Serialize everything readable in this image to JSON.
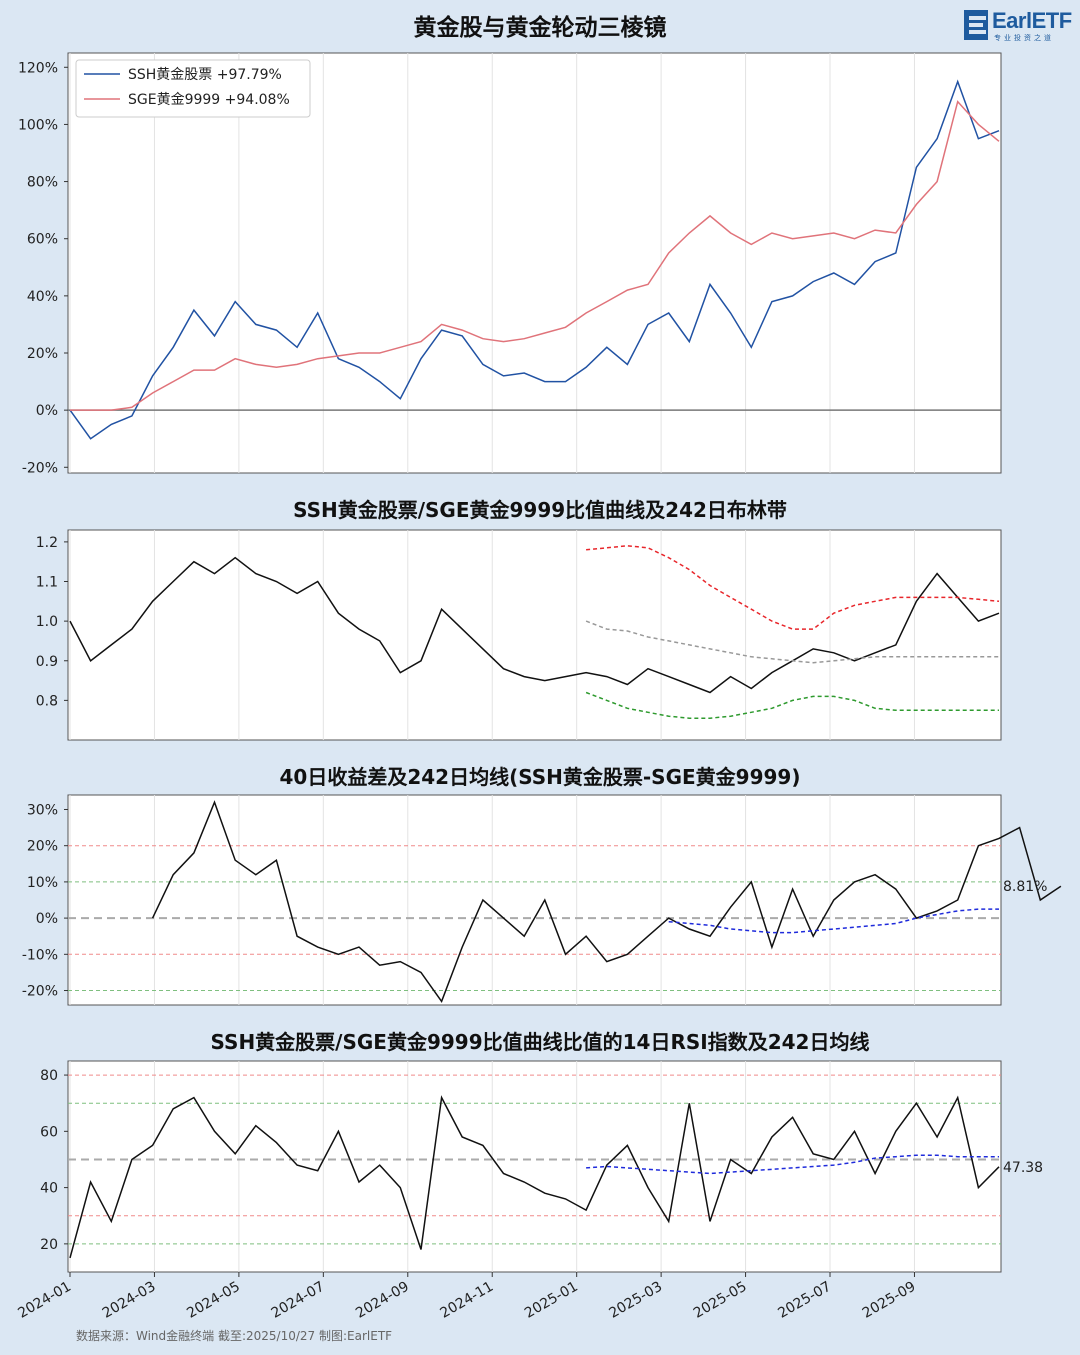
{
  "header": {
    "title": "黄金股与黄金轮动三棱镜",
    "logo_text": "EarlETF",
    "logo_sub": "专业投资之道"
  },
  "footer": {
    "text": "数据来源：Wind金融终端 截至:2025/10/27 制图:EarlETF"
  },
  "colors": {
    "background": "#dbe7f3",
    "ssh": "#2152a3",
    "sge": "#e0737a",
    "ratio": "#111111",
    "upper_band": "#e8262b",
    "mid_band": "#999999",
    "lower_band": "#2e9a2e",
    "ma": "#1f2bdb"
  },
  "chart_data": [
    {
      "type": "line",
      "title": "",
      "xlabel": "",
      "ylabel": "",
      "ylim": [
        -22,
        125
      ],
      "y_ticks": [
        "-20%",
        "0%",
        "20%",
        "40%",
        "60%",
        "80%",
        "100%",
        "120%"
      ],
      "legend_position": "top-left",
      "grid": "vertical",
      "x": [
        "2024-01-02",
        "2024-01-20",
        "2024-02-05",
        "2024-02-25",
        "2024-03-10",
        "2024-03-25",
        "2024-04-10",
        "2024-04-25",
        "2024-05-10",
        "2024-05-20",
        "2024-06-05",
        "2024-06-25",
        "2024-07-10",
        "2024-07-25",
        "2024-08-05",
        "2024-08-20",
        "2024-09-05",
        "2024-09-15",
        "2024-09-25",
        "2024-10-10",
        "2024-10-25",
        "2024-11-10",
        "2024-11-25",
        "2024-12-10",
        "2024-12-25",
        "2025-01-10",
        "2025-01-25",
        "2025-02-10",
        "2025-02-25",
        "2025-03-10",
        "2025-03-25",
        "2025-04-10",
        "2025-04-20",
        "2025-04-30",
        "2025-05-15",
        "2025-06-01",
        "2025-06-20",
        "2025-07-05",
        "2025-07-20",
        "2025-08-05",
        "2025-08-20",
        "2025-09-05",
        "2025-09-20",
        "2025-10-05",
        "2025-10-15",
        "2025-10-27"
      ],
      "series": [
        {
          "name": "SSH黄金股票",
          "label": "SSH黄金股票  +97.79%",
          "values": [
            0,
            -10,
            -5,
            -2,
            12,
            22,
            35,
            26,
            38,
            30,
            28,
            22,
            34,
            18,
            15,
            10,
            4,
            18,
            28,
            26,
            16,
            12,
            13,
            10,
            10,
            15,
            22,
            16,
            30,
            34,
            24,
            44,
            34,
            22,
            38,
            40,
            45,
            48,
            44,
            52,
            55,
            85,
            95,
            115,
            95,
            97.8
          ]
        },
        {
          "name": "SGE黄金9999",
          "label": "SGE黄金9999  +94.08%",
          "values": [
            0,
            0,
            0,
            1,
            6,
            10,
            14,
            14,
            18,
            16,
            15,
            16,
            18,
            19,
            20,
            20,
            22,
            24,
            30,
            28,
            25,
            24,
            25,
            27,
            29,
            34,
            38,
            42,
            44,
            55,
            62,
            68,
            62,
            58,
            62,
            60,
            61,
            62,
            60,
            63,
            62,
            72,
            80,
            108,
            100,
            94.1
          ]
        }
      ]
    },
    {
      "type": "line",
      "title": "SSH黄金股票/SGE黄金9999比值曲线及242日布林带",
      "ylim": [
        0.7,
        1.23
      ],
      "y_ticks": [
        "0.8",
        "0.9",
        "1.0",
        "1.1",
        "1.2"
      ],
      "series": [
        {
          "name": "ratio",
          "values": [
            1.0,
            0.9,
            0.94,
            0.98,
            1.05,
            1.1,
            1.15,
            1.12,
            1.16,
            1.12,
            1.1,
            1.07,
            1.1,
            1.02,
            0.98,
            0.95,
            0.87,
            0.9,
            1.03,
            0.98,
            0.93,
            0.88,
            0.86,
            0.85,
            0.86,
            0.87,
            0.86,
            0.84,
            0.88,
            0.86,
            0.84,
            0.82,
            0.86,
            0.83,
            0.87,
            0.9,
            0.93,
            0.92,
            0.9,
            0.92,
            0.94,
            1.05,
            1.12,
            1.06,
            1.0,
            1.02
          ]
        },
        {
          "name": "upper",
          "start_index": 25,
          "values": [
            1.18,
            1.185,
            1.19,
            1.185,
            1.16,
            1.13,
            1.09,
            1.06,
            1.03,
            1.0,
            0.98,
            0.98,
            1.02,
            1.04,
            1.05,
            1.06,
            1.06,
            1.06,
            1.06,
            1.055,
            1.05
          ]
        },
        {
          "name": "middle",
          "start_index": 25,
          "values": [
            1.0,
            0.98,
            0.975,
            0.96,
            0.95,
            0.94,
            0.93,
            0.92,
            0.91,
            0.905,
            0.9,
            0.895,
            0.9,
            0.905,
            0.91,
            0.91,
            0.91,
            0.91,
            0.91,
            0.91,
            0.91
          ]
        },
        {
          "name": "lower",
          "start_index": 25,
          "values": [
            0.82,
            0.8,
            0.78,
            0.77,
            0.76,
            0.755,
            0.755,
            0.76,
            0.77,
            0.78,
            0.8,
            0.81,
            0.81,
            0.8,
            0.78,
            0.775,
            0.775,
            0.775,
            0.775,
            0.775,
            0.775
          ]
        }
      ]
    },
    {
      "type": "line",
      "title": "40日收益差及242日均线(SSH黄金股票-SGE黄金9999)",
      "ylim": [
        -24,
        34
      ],
      "y_ticks": [
        "-20%",
        "-10%",
        "0%",
        "10%",
        "20%",
        "30%"
      ],
      "end_label": "8.81%",
      "series": [
        {
          "name": "diff",
          "start_index": 4,
          "values": [
            0,
            12,
            18,
            32,
            16,
            12,
            16,
            -5,
            -8,
            -10,
            -8,
            -13,
            -12,
            -15,
            -23,
            -8,
            5,
            0,
            -5,
            5,
            -10,
            -5,
            -12,
            -10,
            -5,
            0,
            -3,
            -5,
            3,
            10,
            -8,
            8,
            -5,
            5,
            10,
            12,
            8,
            0,
            2,
            5,
            20,
            22,
            25,
            5,
            8.81
          ]
        },
        {
          "name": "ma",
          "start_index": 29,
          "values": [
            -1,
            -1.5,
            -2,
            -3,
            -3.5,
            -4,
            -4,
            -3.5,
            -3,
            -2.5,
            -2,
            -1.5,
            0,
            1,
            2,
            2.5,
            2.5
          ]
        }
      ]
    },
    {
      "type": "line",
      "title": "SSH黄金股票/SGE黄金9999比值曲线比值的14日RSI指数及242日均线",
      "ylim": [
        10,
        85
      ],
      "y_ticks": [
        "20",
        "40",
        "60",
        "80"
      ],
      "end_label": "47.38",
      "series": [
        {
          "name": "rsi",
          "values": [
            15,
            42,
            28,
            50,
            55,
            68,
            72,
            60,
            52,
            62,
            56,
            48,
            46,
            60,
            42,
            48,
            40,
            18,
            72,
            58,
            55,
            45,
            42,
            38,
            36,
            32,
            48,
            55,
            40,
            28,
            70,
            28,
            50,
            45,
            58,
            65,
            52,
            50,
            60,
            45,
            60,
            70,
            58,
            72,
            40,
            47.38
          ]
        },
        {
          "name": "ma",
          "start_index": 25,
          "values": [
            47,
            47.5,
            47,
            46.5,
            46,
            45.5,
            45,
            45.5,
            46,
            46.5,
            47,
            47.5,
            48,
            49,
            50.5,
            51,
            51.5,
            51.5,
            51,
            51,
            51
          ]
        }
      ]
    }
  ],
  "x_axis": {
    "tick_labels": [
      "2024-01",
      "2024-03",
      "2024-05",
      "2024-07",
      "2024-09",
      "2024-11",
      "2025-01",
      "2025-03",
      "2025-05",
      "2025-07",
      "2025-09"
    ]
  }
}
